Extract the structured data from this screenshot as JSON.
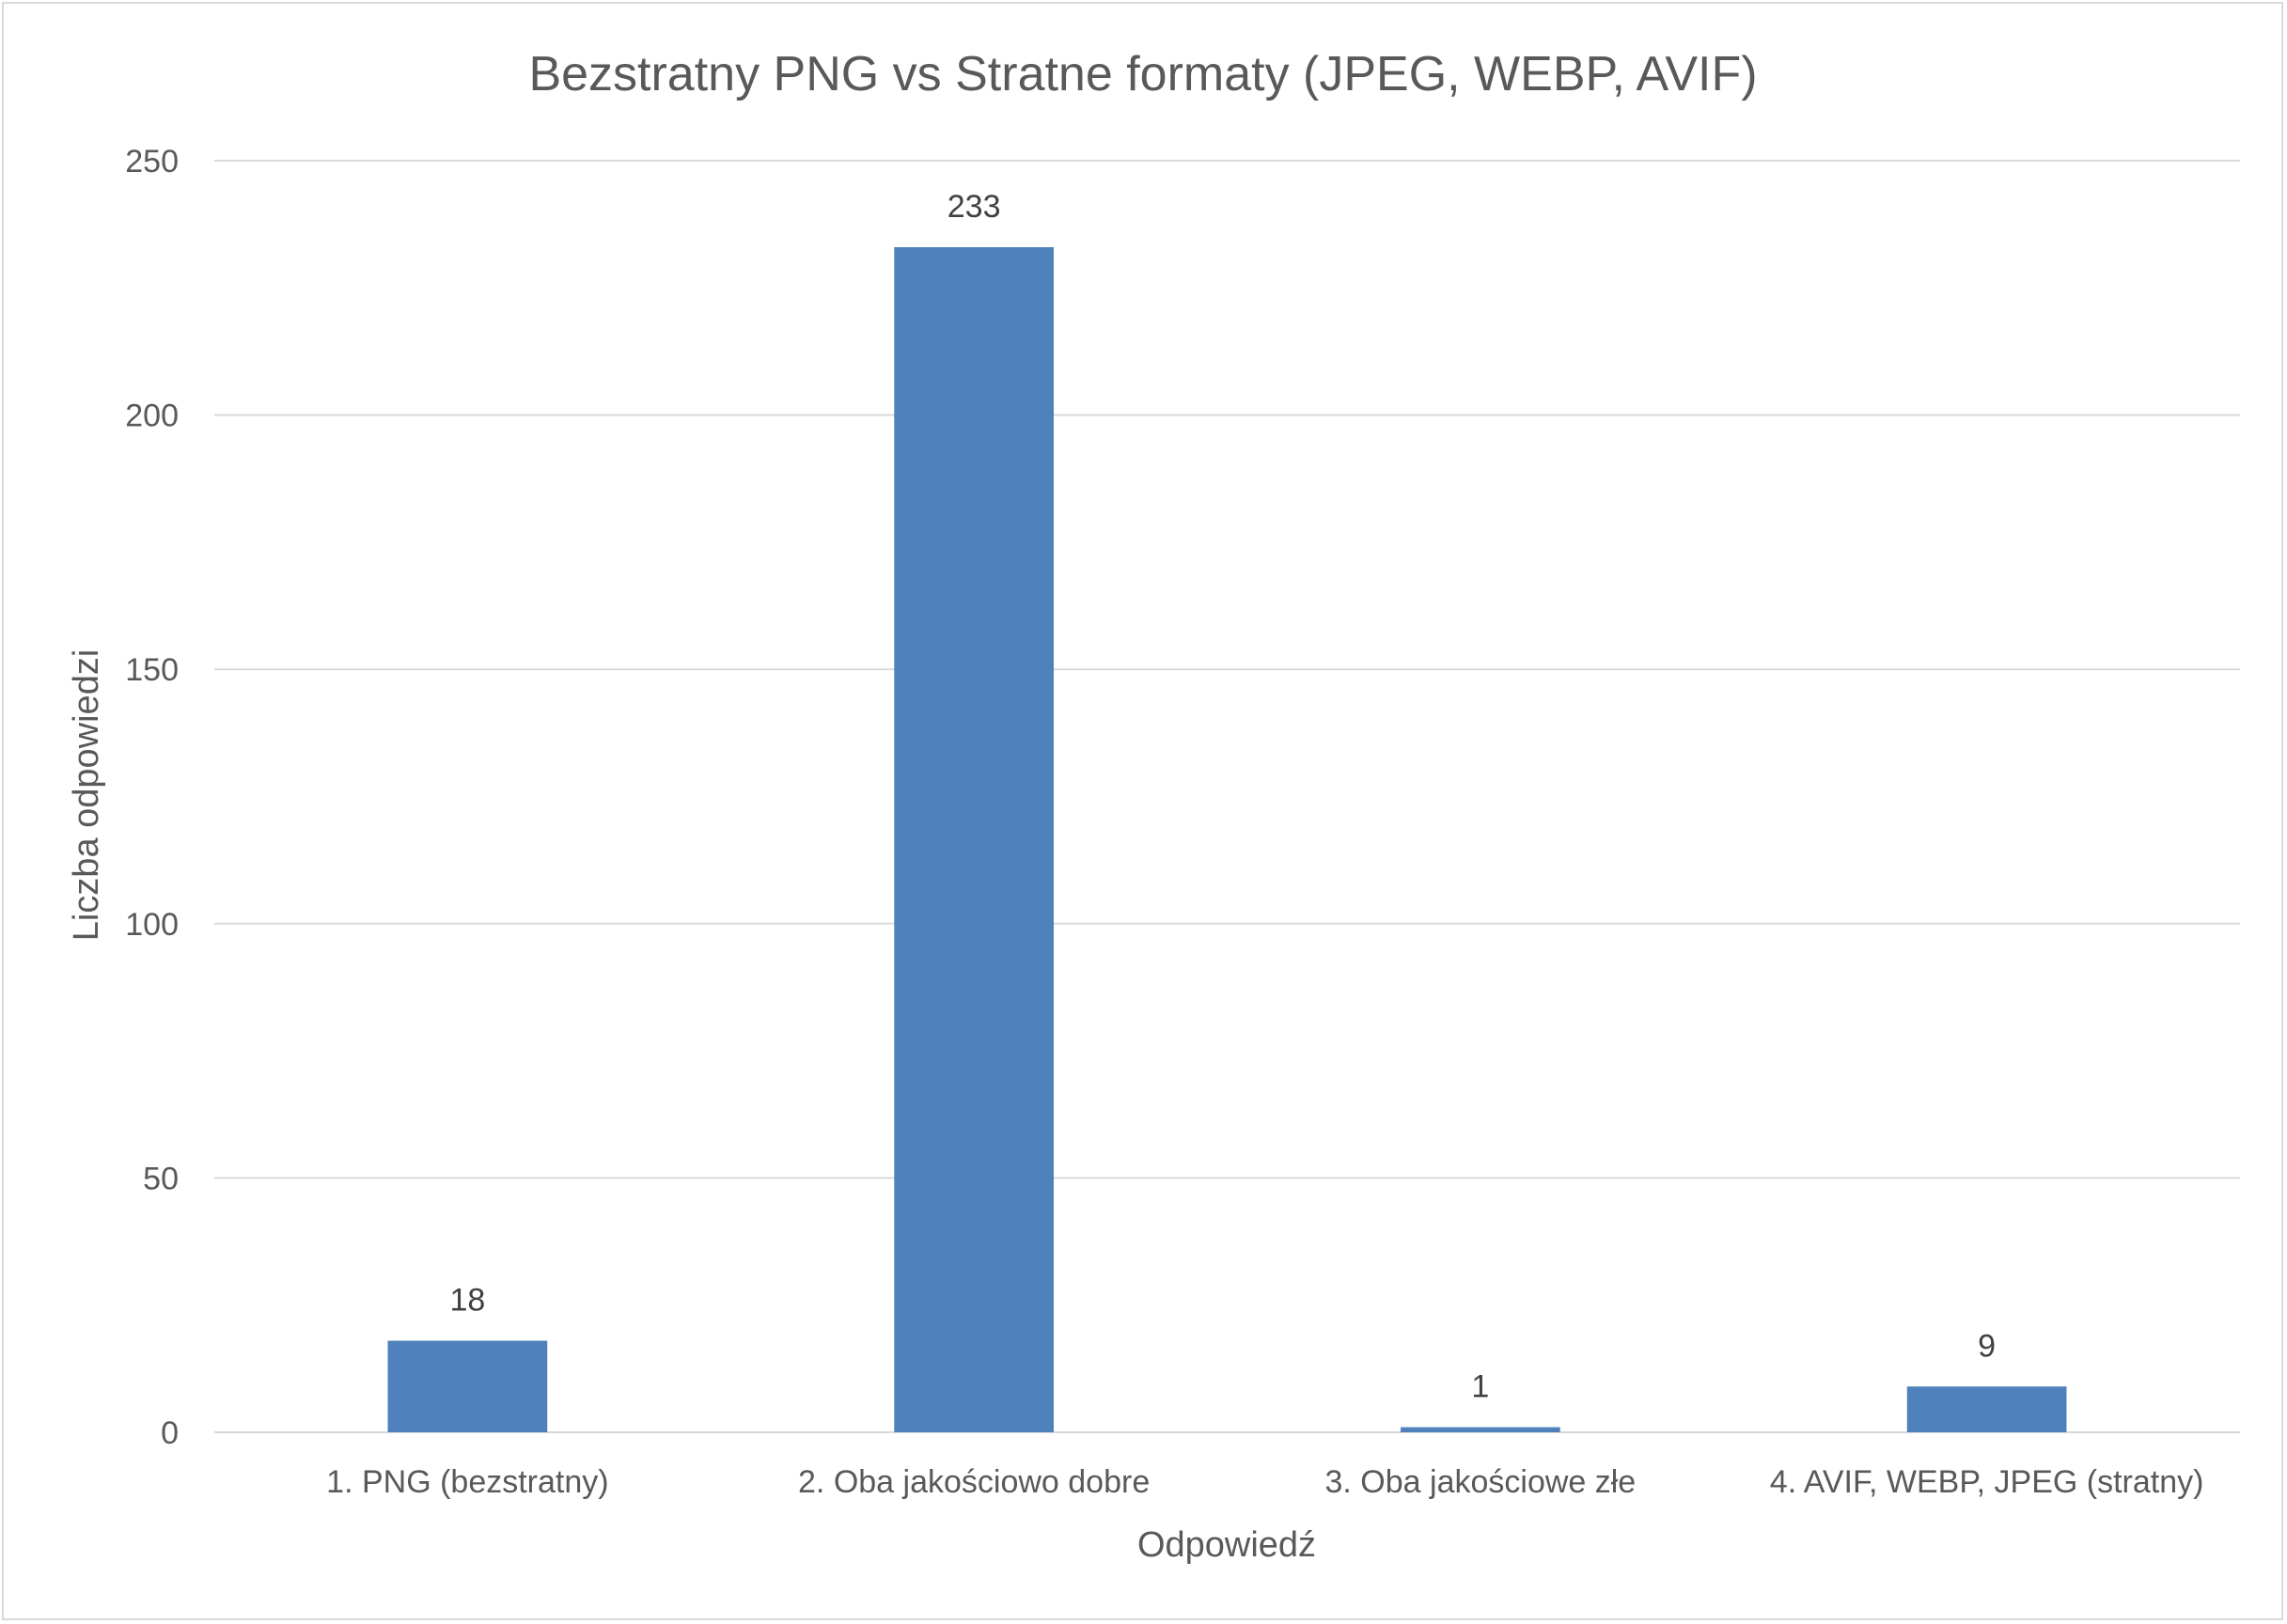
{
  "chart_data": {
    "type": "bar",
    "title": "Bezstratny PNG vs Stratne formaty (JPEG, WEBP, AVIF)",
    "xlabel": "Odpowiedź",
    "ylabel": "Liczba odpowiedzi",
    "categories": [
      "1. PNG (bezstratny)",
      "2. Oba jakościowo dobre",
      "3. Oba jakościowe złe",
      "4. AVIF, WEBP, JPEG (stratny)"
    ],
    "values": [
      18,
      233,
      1,
      9
    ],
    "ylim": [
      0,
      250
    ],
    "yticks": [
      0,
      50,
      100,
      150,
      200,
      250
    ],
    "grid": true,
    "legend": "none",
    "data_labels": true,
    "bar_color": "#4f81bd"
  }
}
